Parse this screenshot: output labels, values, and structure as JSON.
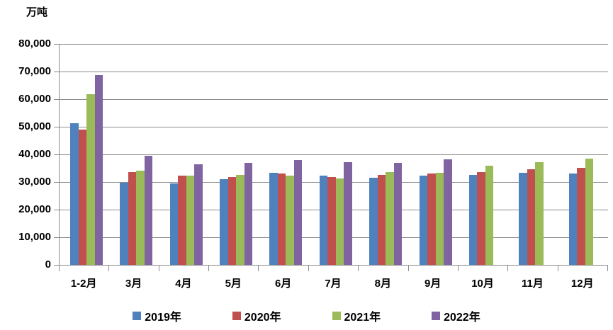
{
  "unit_label": "万吨",
  "chart_data": {
    "type": "bar",
    "title": "",
    "xlabel": "",
    "ylabel": "万吨",
    "ylim": [
      0,
      80000
    ],
    "ytick_step": 10000,
    "ytick_labels": [
      "0",
      "10,000",
      "20,000",
      "30,000",
      "40,000",
      "50,000",
      "60,000",
      "70,000",
      "80,000"
    ],
    "grid": true,
    "legend_position": "bottom",
    "gridline_color": "#8c8c8c",
    "categories": [
      "1-2月",
      "3月",
      "4月",
      "5月",
      "6月",
      "7月",
      "8月",
      "9月",
      "10月",
      "11月",
      "12月"
    ],
    "series": [
      {
        "name": "2019年",
        "color": "#4F81BD",
        "values": [
          51400,
          29800,
          29400,
          31100,
          33300,
          32200,
          31600,
          32400,
          32600,
          33400,
          33200
        ]
      },
      {
        "name": "2020年",
        "color": "#C0504D",
        "values": [
          48900,
          33700,
          32200,
          31900,
          33200,
          31900,
          32600,
          33000,
          33700,
          34700,
          35200
        ]
      },
      {
        "name": "2021年",
        "color": "#9BBB59",
        "values": [
          61800,
          34100,
          32200,
          32600,
          32300,
          31400,
          33500,
          33400,
          35900,
          37100,
          38500
        ]
      },
      {
        "name": "2022年",
        "color": "#8064A2",
        "values": [
          68700,
          39600,
          36300,
          36800,
          37900,
          37300,
          37000,
          38300,
          null,
          null,
          null
        ]
      }
    ]
  }
}
